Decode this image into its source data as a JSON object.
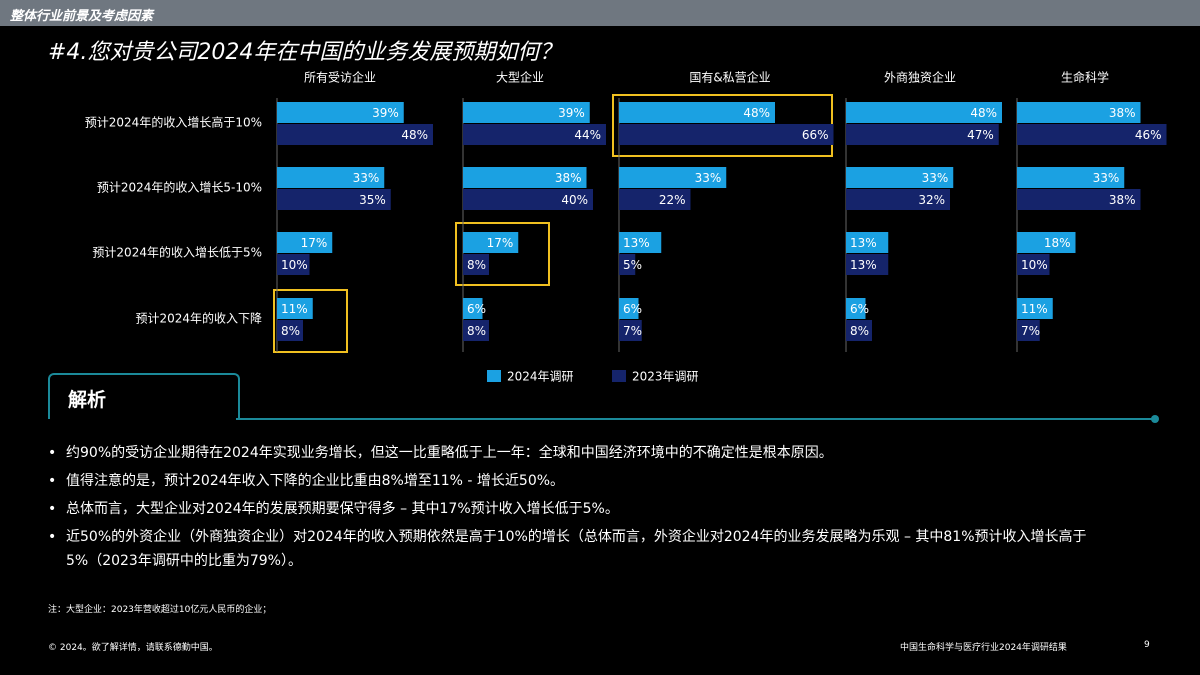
{
  "header": {
    "section": "整体行业前景及考虑因素",
    "title": "#4.您对贵公司2024年在中国的业务发展预期如何？"
  },
  "chart_data": [
    {
      "type": "bar",
      "title": "所有受访企业",
      "categories": [
        "预计2024年的收入增长高于10%",
        "预计2024年的收入增长5-10%",
        "预计2024年的收入增长低于5%",
        "预计2024年的收入下降"
      ],
      "series": [
        {
          "name": "2024年调研",
          "color": "#1ba1e2",
          "values": [
            39,
            33,
            17,
            11
          ],
          "value_labels": [
            "39%",
            "33%",
            "17%",
            "11%"
          ]
        },
        {
          "name": "2023年调研",
          "color": "#15246b",
          "values": [
            48,
            35,
            10,
            8
          ],
          "value_labels": [
            "48%",
            "35%",
            "10%",
            "8%"
          ]
        }
      ]
    },
    {
      "type": "bar",
      "title": "大型企业",
      "series": [
        {
          "color": "#1ba1e2",
          "values": [
            39,
            38,
            17,
            6
          ],
          "value_labels": [
            "39%",
            "38%",
            "17%",
            "6%"
          ]
        },
        {
          "color": "#15246b",
          "values": [
            44,
            40,
            8,
            8
          ],
          "value_labels": [
            "44%",
            "40%",
            "8%",
            "8%"
          ]
        }
      ]
    },
    {
      "type": "bar",
      "title": "国有&私营企业",
      "series": [
        {
          "color": "#1ba1e2",
          "values": [
            48,
            33,
            13,
            6
          ],
          "value_labels": [
            "48%",
            "33%",
            "13%",
            "6%"
          ]
        },
        {
          "color": "#15246b",
          "values": [
            66,
            22,
            5,
            7
          ],
          "value_labels": [
            "66%",
            "22%",
            "5%",
            "7%"
          ]
        }
      ]
    },
    {
      "type": "bar",
      "title": "外商独资企业",
      "series": [
        {
          "color": "#1ba1e2",
          "values": [
            48,
            33,
            13,
            6
          ],
          "value_labels": [
            "48%",
            "33%",
            "13%",
            "6%"
          ]
        },
        {
          "color": "#15246b",
          "values": [
            47,
            32,
            13,
            8
          ],
          "value_labels": [
            "47%",
            "32%",
            "13%",
            "8%"
          ]
        }
      ]
    },
    {
      "type": "bar",
      "title": "生命科学",
      "series": [
        {
          "color": "#1ba1e2",
          "values": [
            38,
            33,
            18,
            11
          ],
          "value_labels": [
            "38%",
            "33%",
            "18%",
            "11%"
          ]
        },
        {
          "color": "#15246b",
          "values": [
            46,
            38,
            10,
            7
          ],
          "value_labels": [
            "46%",
            "38%",
            "10%",
            "7%"
          ]
        }
      ]
    }
  ],
  "analysis": {
    "heading": "解析",
    "bullets": [
      "约90%的受访企业期待在2024年实现业务增长，但这一比重略低于上一年：全球和中国经济环境中的不确定性是根本原因。",
      "值得注意的是，预计2024年收入下降的企业比重由8%增至11% - 增长近50%。",
      "总体而言，大型企业对2024年的发展预期要保守得多 – 其中17%预计收入增长低于5%。",
      "近50%的外资企业（外商独资企业）对2024年的收入预期依然是高于10%的增长（总体而言，外资企业对2024年的业务发展略为乐观 – 其中81%预计收入增长高于5%（2023年调研中的比重为79%）。"
    ]
  },
  "note": "注：大型企业：2023年营收超过10亿元人民币的企业；",
  "footer": {
    "copyright": "© 2024。欲了解详情，请联系德勤中国。",
    "report": "中国生命科学与医疗行业2024年调研结果",
    "page": "9"
  }
}
